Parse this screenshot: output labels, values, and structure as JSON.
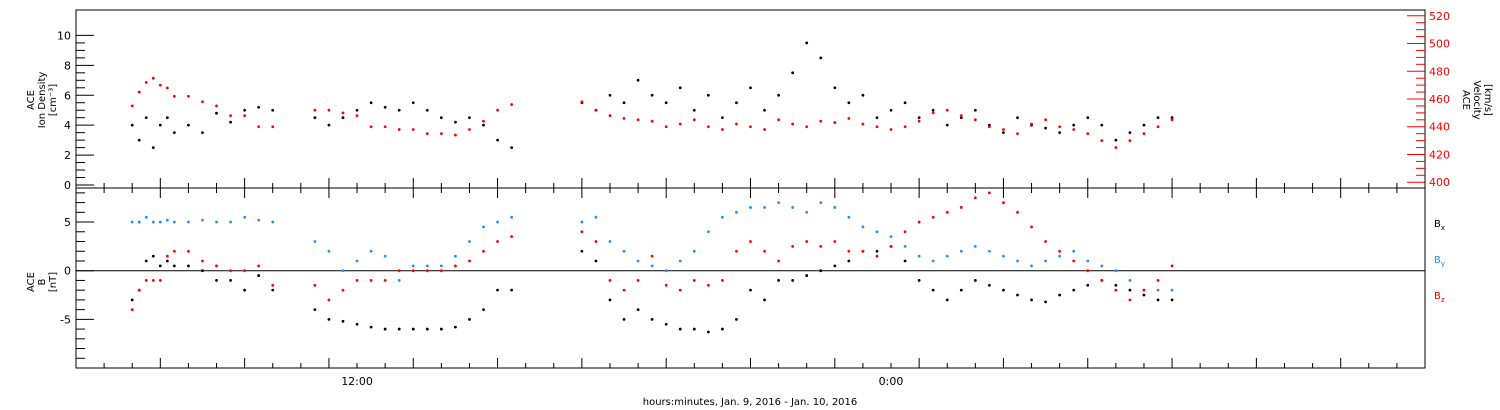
{
  "chart_data": [
    {
      "type": "scatter",
      "panel": "top",
      "ylabel_left": [
        "ACE",
        "Ion Density",
        "[cm⁻³]"
      ],
      "ylabel_right": [
        "ACE",
        "Velocity",
        "[km/s]"
      ],
      "ylim_left": [
        0,
        11.5
      ],
      "yticks_left": [
        "0",
        "2",
        "4",
        "6",
        "8",
        "10"
      ],
      "ylim_right": [
        398,
        522
      ],
      "yticks_right": [
        "400",
        "420",
        "440",
        "460",
        "480",
        "500",
        "520"
      ],
      "colors": {
        "density": "#000000",
        "velocity": "#ff0000"
      },
      "series": [
        {
          "name": "Ion Density",
          "axis": "left",
          "color": "#000000",
          "x": [
            0.0,
            0.25,
            0.5,
            0.75,
            1.0,
            1.25,
            1.5,
            2.0,
            2.5,
            3.0,
            3.5,
            4.0,
            4.5,
            5.0,
            6.5,
            7.0,
            7.5,
            8.0,
            8.5,
            9.0,
            9.5,
            10.0,
            10.5,
            11.0,
            11.5,
            12.0,
            12.5,
            13.0,
            13.5,
            16.0,
            16.5,
            17.0,
            17.5,
            18.0,
            18.5,
            19.0,
            19.5,
            20.0,
            20.5,
            21.0,
            21.5,
            22.0,
            22.5,
            23.0,
            23.5,
            24.0,
            24.5,
            25.0,
            25.5,
            26.0,
            26.5,
            27.0,
            27.5,
            28.0,
            28.5,
            29.0,
            29.5,
            30.0,
            30.5,
            31.0,
            31.5,
            32.0,
            32.5,
            33.0,
            33.5,
            34.0,
            34.5,
            35.0,
            35.5,
            36.0,
            36.5,
            37.0
          ],
          "y": [
            4.0,
            3.0,
            4.5,
            2.5,
            4.0,
            4.5,
            3.5,
            4.0,
            3.5,
            4.8,
            4.2,
            5.0,
            5.2,
            5.0,
            4.5,
            4.0,
            4.5,
            5.0,
            5.5,
            5.2,
            5.0,
            5.5,
            5.0,
            4.5,
            4.2,
            4.5,
            4.0,
            3.0,
            2.5,
            5.5,
            5.0,
            6.0,
            5.5,
            7.0,
            6.0,
            5.5,
            6.5,
            5.0,
            6.0,
            4.5,
            5.5,
            6.5,
            5.0,
            6.0,
            7.5,
            9.5,
            8.5,
            6.5,
            5.5,
            6.0,
            4.5,
            5.0,
            5.5,
            4.5,
            5.0,
            4.0,
            4.5,
            5.0,
            4.0,
            3.5,
            4.5,
            4.0,
            3.8,
            3.5,
            4.0,
            4.5,
            4.0,
            3.0,
            3.5,
            4.0,
            4.5,
            4.5
          ]
        },
        {
          "name": "Velocity",
          "axis": "right",
          "color": "#ff0000",
          "x": [
            0.0,
            0.25,
            0.5,
            0.75,
            1.0,
            1.25,
            1.5,
            2.0,
            2.5,
            3.0,
            3.5,
            4.0,
            4.5,
            5.0,
            6.5,
            7.0,
            7.5,
            8.0,
            8.5,
            9.0,
            9.5,
            10.0,
            10.5,
            11.0,
            11.5,
            12.0,
            12.5,
            13.0,
            13.5,
            16.0,
            16.5,
            17.0,
            17.5,
            18.0,
            18.5,
            19.0,
            19.5,
            20.0,
            20.5,
            21.0,
            21.5,
            22.0,
            22.5,
            23.0,
            23.5,
            24.0,
            24.5,
            25.0,
            25.5,
            26.0,
            26.5,
            27.0,
            27.5,
            28.0,
            28.5,
            29.0,
            29.5,
            30.0,
            30.5,
            31.0,
            31.5,
            32.0,
            32.5,
            33.0,
            33.5,
            34.0,
            34.5,
            35.0,
            35.5,
            36.0,
            36.5,
            37.0
          ],
          "y": [
            455,
            465,
            472,
            475,
            470,
            468,
            462,
            462,
            458,
            455,
            448,
            448,
            440,
            440,
            452,
            452,
            450,
            448,
            440,
            440,
            438,
            438,
            435,
            435,
            434,
            438,
            444,
            452,
            456,
            458,
            452,
            448,
            446,
            445,
            444,
            440,
            442,
            445,
            440,
            438,
            442,
            440,
            438,
            445,
            442,
            440,
            444,
            443,
            446,
            442,
            440,
            438,
            440,
            444,
            450,
            452,
            448,
            445,
            440,
            438,
            435,
            442,
            445,
            440,
            438,
            435,
            430,
            425,
            430,
            435,
            440,
            445
          ]
        }
      ]
    },
    {
      "type": "scatter",
      "panel": "bottom",
      "ylabel_left": [
        "ACE",
        "B",
        "[nT]"
      ],
      "ylim": [
        -10,
        8.5
      ],
      "yticks": [
        "-5",
        "0",
        "5"
      ],
      "zero_line": true,
      "xticks": [
        "12:00",
        "0:00"
      ],
      "xlabel": "hours:minutes, Jan. 9, 2016 - Jan. 10, 2016",
      "legend": [
        {
          "label": "B",
          "sub": "x",
          "color": "#000000"
        },
        {
          "label": "B",
          "sub": "y",
          "color": "#1e90ff"
        },
        {
          "label": "B",
          "sub": "z",
          "color": "#ff0000"
        }
      ],
      "series": [
        {
          "name": "Bx",
          "color": "#000000",
          "x": [
            0.0,
            0.25,
            0.5,
            0.75,
            1.0,
            1.25,
            1.5,
            2.0,
            2.5,
            3.0,
            3.5,
            4.0,
            4.5,
            5.0,
            6.5,
            7.0,
            7.5,
            8.0,
            8.5,
            9.0,
            9.5,
            10.0,
            10.5,
            11.0,
            11.5,
            12.0,
            12.5,
            13.0,
            13.5,
            16.0,
            16.5,
            17.0,
            17.5,
            18.0,
            18.5,
            19.0,
            19.5,
            20.0,
            20.5,
            21.0,
            21.5,
            22.0,
            22.5,
            23.0,
            23.5,
            24.0,
            24.5,
            25.0,
            25.5,
            26.0,
            26.5,
            27.0,
            27.5,
            28.0,
            28.5,
            29.0,
            29.5,
            30.0,
            30.5,
            31.0,
            31.5,
            32.0,
            32.5,
            33.0,
            33.5,
            34.0,
            34.5,
            35.0,
            35.5,
            36.0,
            36.5,
            37.0
          ],
          "y": [
            -3.0,
            -2.0,
            1.0,
            1.5,
            0.5,
            1.0,
            0.5,
            0.5,
            0.0,
            -1.0,
            -1.0,
            -2.0,
            -0.5,
            -2.0,
            -4.0,
            -5.0,
            -5.2,
            -5.5,
            -5.8,
            -6.0,
            -6.0,
            -6.0,
            -6.0,
            -6.0,
            -5.8,
            -5.0,
            -4.0,
            -2.0,
            -2.0,
            2.0,
            1.0,
            -3.0,
            -5.0,
            -4.0,
            -5.0,
            -5.5,
            -6.0,
            -6.0,
            -6.3,
            -6.0,
            -5.0,
            -2.0,
            -3.0,
            -1.0,
            -1.0,
            -0.5,
            0.0,
            0.5,
            1.0,
            2.0,
            2.0,
            2.5,
            1.0,
            -1.0,
            -2.0,
            -3.0,
            -2.0,
            -1.0,
            -1.5,
            -2.0,
            -2.5,
            -3.0,
            -3.2,
            -2.5,
            -2.0,
            -1.5,
            -1.0,
            -1.5,
            -2.0,
            -2.5,
            -3.0,
            -3.0
          ]
        },
        {
          "name": "By",
          "color": "#1e90ff",
          "x": [
            0.0,
            0.25,
            0.5,
            0.75,
            1.0,
            1.25,
            1.5,
            2.0,
            2.5,
            3.0,
            3.5,
            4.0,
            4.5,
            5.0,
            6.5,
            7.0,
            7.5,
            8.0,
            8.5,
            9.0,
            9.5,
            10.0,
            10.5,
            11.0,
            11.5,
            12.0,
            12.5,
            13.0,
            13.5,
            16.0,
            16.5,
            17.0,
            17.5,
            18.0,
            18.5,
            19.0,
            19.5,
            20.0,
            20.5,
            21.0,
            21.5,
            22.0,
            22.5,
            23.0,
            23.5,
            24.0,
            24.5,
            25.0,
            25.5,
            26.0,
            26.5,
            27.0,
            27.5,
            28.0,
            28.5,
            29.0,
            29.5,
            30.0,
            30.5,
            31.0,
            31.5,
            32.0,
            32.5,
            33.0,
            33.5,
            34.0,
            34.5,
            35.0,
            35.5,
            36.0,
            36.5,
            37.0
          ],
          "y": [
            5.0,
            5.0,
            5.5,
            5.0,
            5.0,
            5.2,
            5.0,
            5.0,
            5.2,
            5.0,
            5.0,
            5.5,
            5.2,
            5.0,
            3.0,
            2.0,
            0.0,
            1.0,
            2.0,
            1.5,
            -1.0,
            0.5,
            0.5,
            0.5,
            1.5,
            3.0,
            4.5,
            5.0,
            5.5,
            5.0,
            5.5,
            3.0,
            2.0,
            1.0,
            0.5,
            0.0,
            1.0,
            2.0,
            4.0,
            5.5,
            6.0,
            6.5,
            6.5,
            7.0,
            6.5,
            6.0,
            7.0,
            6.5,
            5.5,
            4.5,
            4.0,
            3.5,
            2.5,
            1.5,
            1.0,
            1.5,
            2.0,
            2.5,
            2.0,
            1.5,
            1.0,
            0.5,
            1.0,
            1.5,
            2.0,
            1.0,
            0.5,
            0.0,
            -1.0,
            -2.0,
            -2.0,
            -2.0
          ]
        },
        {
          "name": "Bz",
          "color": "#ff0000",
          "x": [
            0.0,
            0.25,
            0.5,
            0.75,
            1.0,
            1.25,
            1.5,
            2.0,
            2.5,
            3.0,
            3.5,
            4.0,
            4.5,
            5.0,
            6.5,
            7.0,
            7.5,
            8.0,
            8.5,
            9.0,
            9.5,
            10.0,
            10.5,
            11.0,
            11.5,
            12.0,
            12.5,
            13.0,
            13.5,
            16.0,
            16.5,
            17.0,
            17.5,
            18.0,
            18.5,
            19.0,
            19.5,
            20.0,
            20.5,
            21.0,
            21.5,
            22.0,
            22.5,
            23.0,
            23.5,
            24.0,
            24.5,
            25.0,
            25.5,
            26.0,
            26.5,
            27.0,
            27.5,
            28.0,
            28.5,
            29.0,
            29.5,
            30.0,
            30.5,
            31.0,
            31.5,
            32.0,
            32.5,
            33.0,
            33.5,
            34.0,
            34.5,
            35.0,
            35.5,
            36.0,
            36.5,
            37.0
          ],
          "y": [
            -4.0,
            -2.0,
            -1.0,
            -1.0,
            -1.0,
            1.5,
            2.0,
            2.0,
            1.0,
            0.5,
            0.0,
            0.0,
            0.5,
            -1.5,
            -1.5,
            -3.0,
            -2.0,
            -1.0,
            -1.0,
            -1.0,
            0.0,
            0.0,
            0.0,
            0.0,
            0.5,
            1.0,
            2.0,
            3.0,
            3.5,
            4.0,
            3.0,
            -1.0,
            -2.0,
            -1.0,
            1.5,
            -1.5,
            -2.0,
            -1.0,
            -1.5,
            -1.0,
            2.0,
            3.0,
            2.0,
            1.0,
            2.5,
            3.0,
            2.5,
            3.0,
            2.0,
            2.0,
            1.5,
            2.5,
            4.0,
            5.0,
            5.5,
            6.0,
            6.5,
            7.5,
            8.0,
            7.0,
            6.0,
            4.5,
            3.0,
            2.0,
            1.0,
            0.0,
            -1.0,
            -2.0,
            -3.0,
            -2.0,
            -1.0,
            0.5
          ]
        }
      ]
    }
  ]
}
